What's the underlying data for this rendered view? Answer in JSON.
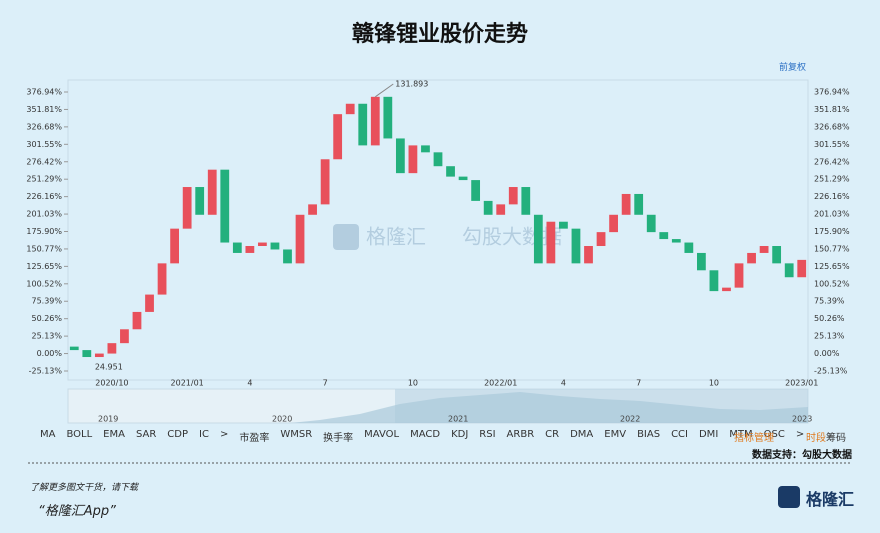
{
  "header": {
    "title": "赣锋锂业股价走势"
  },
  "toolbar": {
    "adjust": "前复权"
  },
  "chart_data": {
    "type": "candlestick",
    "categories": [
      null,
      null,
      null,
      "2020/10",
      null,
      null,
      null,
      null,
      null,
      "2021/01",
      null,
      null,
      null,
      null,
      "4",
      null,
      null,
      null,
      null,
      null,
      "7",
      null,
      null,
      null,
      null,
      null,
      null,
      "10",
      null,
      null,
      null,
      null,
      null,
      null,
      "2022/01",
      null,
      null,
      null,
      null,
      "4",
      null,
      null,
      null,
      null,
      null,
      "7",
      null,
      null,
      null,
      null,
      null,
      "10",
      null,
      null,
      null,
      null,
      null,
      null,
      "2023/01"
    ],
    "open": [
      10,
      5,
      -5,
      0,
      15,
      35,
      60,
      85,
      130,
      180,
      240,
      200,
      265,
      160,
      145,
      155,
      160,
      150,
      130,
      200,
      215,
      280,
      345,
      360,
      300,
      370,
      310,
      260,
      300,
      290,
      270,
      255,
      250,
      220,
      200,
      215,
      240,
      200,
      130,
      190,
      180,
      130,
      155,
      175,
      200,
      230,
      200,
      175,
      165,
      160,
      145,
      120,
      90,
      95,
      130,
      145,
      155,
      130,
      110
    ],
    "close": [
      5,
      -5,
      0,
      15,
      35,
      60,
      85,
      130,
      180,
      240,
      200,
      265,
      160,
      145,
      155,
      160,
      150,
      130,
      200,
      215,
      280,
      345,
      360,
      300,
      370,
      310,
      260,
      300,
      290,
      270,
      255,
      250,
      220,
      200,
      215,
      240,
      200,
      130,
      190,
      180,
      130,
      155,
      175,
      200,
      230,
      200,
      175,
      165,
      160,
      145,
      120,
      90,
      95,
      130,
      145,
      155,
      130,
      110,
      135
    ],
    "up_color": "#e8505b",
    "down_color": "#23b07d",
    "ylim": [
      -25.13,
      376.94
    ],
    "yticks": [
      {
        "value": -25.13,
        "label": "-25.13%"
      },
      {
        "value": 0,
        "label": "0.00%"
      },
      {
        "value": 25.13,
        "label": "25.13%"
      },
      {
        "value": 50.26,
        "label": "50.26%"
      },
      {
        "value": 75.39,
        "label": "75.39%"
      },
      {
        "value": 100.52,
        "label": "100.52%"
      },
      {
        "value": 125.65,
        "label": "125.65%"
      },
      {
        "value": 150.77,
        "label": "150.77%"
      },
      {
        "value": 175.9,
        "label": "175.90%"
      },
      {
        "value": 201.03,
        "label": "201.03%"
      },
      {
        "value": 226.16,
        "label": "226.16%"
      },
      {
        "value": 251.29,
        "label": "251.29%"
      },
      {
        "value": 276.42,
        "label": "276.42%"
      },
      {
        "value": 301.55,
        "label": "301.55%"
      },
      {
        "value": 326.68,
        "label": "326.68%"
      },
      {
        "value": 351.81,
        "label": "351.81%"
      },
      {
        "value": 376.94,
        "label": "376.94%"
      }
    ],
    "annotations": [
      "131.893",
      "24.951"
    ]
  },
  "navigator": {
    "labels": [
      "2019",
      "2020",
      "2021",
      "2022",
      "2023"
    ]
  },
  "indicators": {
    "items": [
      "MA",
      "BOLL",
      "EMA",
      "SAR",
      "CDP",
      "IC",
      ">",
      "市盈率",
      "WMSR",
      "换手率",
      "MAVOL",
      "MACD",
      "KDJ",
      "RSI",
      "ARBR",
      "CR",
      "DMA",
      "EMV",
      "BIAS",
      "CCI",
      "DMI",
      "MTM",
      "OSC",
      ">"
    ],
    "manage": "指标管理",
    "period": "时段",
    "chips": "筹码"
  },
  "source": "数据支持：勾股大数据",
  "watermark": {
    "brand": "格隆汇",
    "partner": "勾股大数据"
  },
  "footer": {
    "prompt": "了解更多图文干货，请下载",
    "app": "“格隆汇App”",
    "logo": "格隆汇"
  }
}
